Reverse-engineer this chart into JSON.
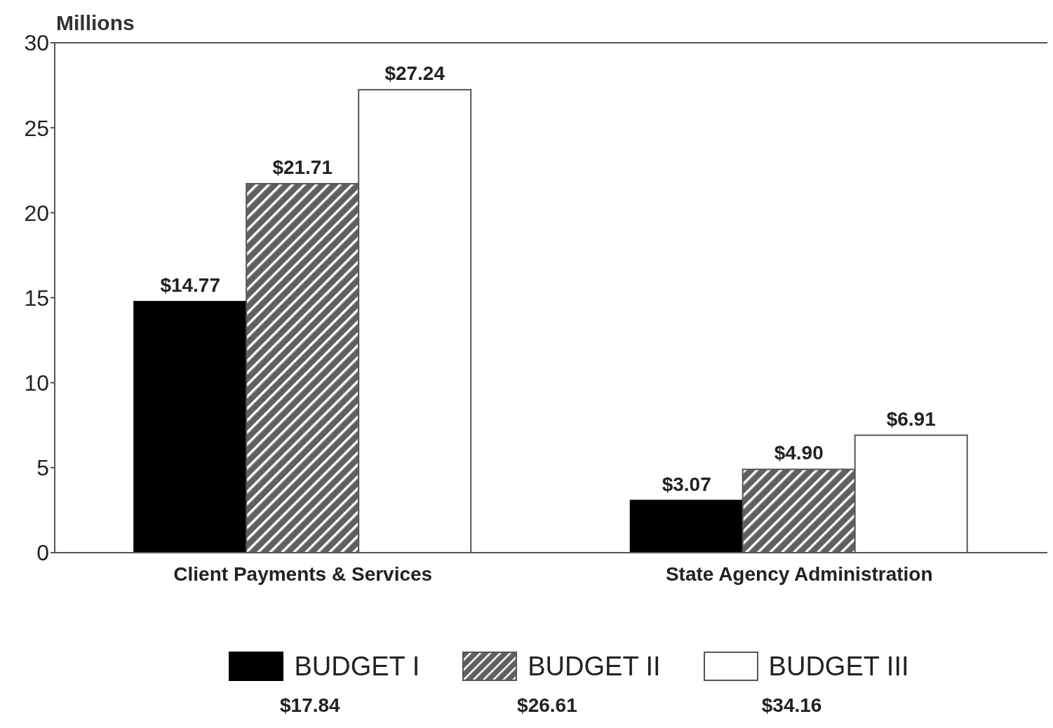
{
  "chart_data": {
    "type": "bar",
    "ylabel": "Millions",
    "categories": [
      "Client Payments & Services",
      "State Agency Administration"
    ],
    "series": [
      {
        "name": "BUDGET I",
        "color": "#000000",
        "values": [
          14.77,
          3.07
        ],
        "value_labels": [
          "$14.77",
          "$3.07"
        ]
      },
      {
        "name": "BUDGET II",
        "color": "#606060",
        "values": [
          21.71,
          4.9
        ],
        "value_labels": [
          "$21.71",
          "$4.90"
        ]
      },
      {
        "name": "BUDGET III",
        "color": "#ffffff",
        "values": [
          27.24,
          6.91
        ],
        "value_labels": [
          "$27.24",
          "$6.91"
        ]
      }
    ],
    "ylim": [
      0,
      30
    ],
    "yticks": [
      0,
      5,
      10,
      15,
      20,
      25,
      30
    ],
    "grid": false,
    "legend": "bottom",
    "annotations": [
      "$17.84",
      "$26.61",
      "$34.16"
    ]
  }
}
